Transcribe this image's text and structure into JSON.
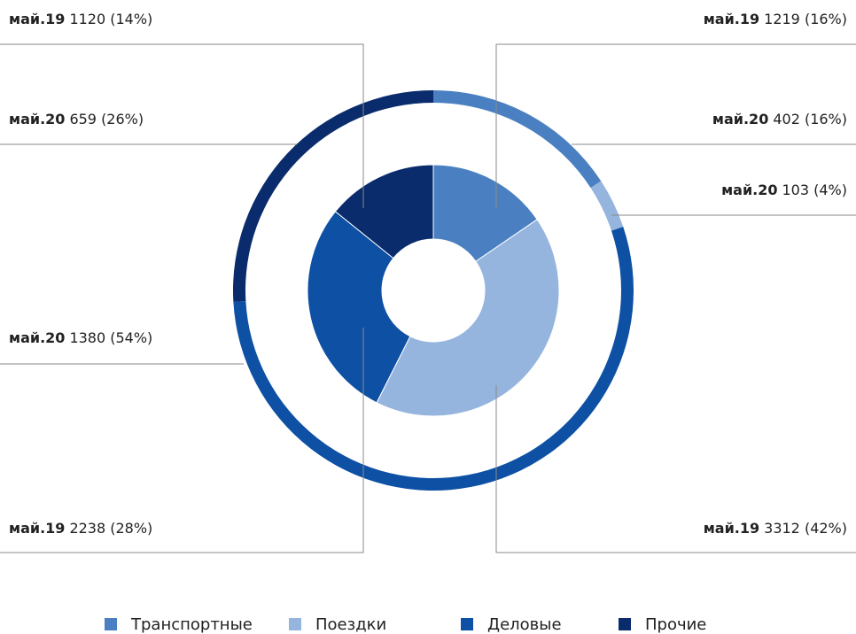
{
  "chart_data": {
    "type": "donut",
    "categories": [
      "Транспортные",
      "Поездки",
      "Деловые",
      "Прочие"
    ],
    "colors": [
      "#4a80c1",
      "#96b5de",
      "#0d50a4",
      "#0a2b6c"
    ],
    "series": [
      {
        "name": "май.19",
        "values": [
          1219,
          3312,
          2238,
          1120
        ],
        "value_labels": [
          "1219 (16%)",
          "3312 (42%)",
          "2238 (28%)",
          "1120 (14%)"
        ]
      },
      {
        "name": "май.20",
        "values": [
          402,
          103,
          1380,
          659
        ],
        "value_labels": [
          "402 (16%)",
          "103 (4%)",
          "1380 (54%)",
          "659 (26%)"
        ]
      }
    ]
  }
}
